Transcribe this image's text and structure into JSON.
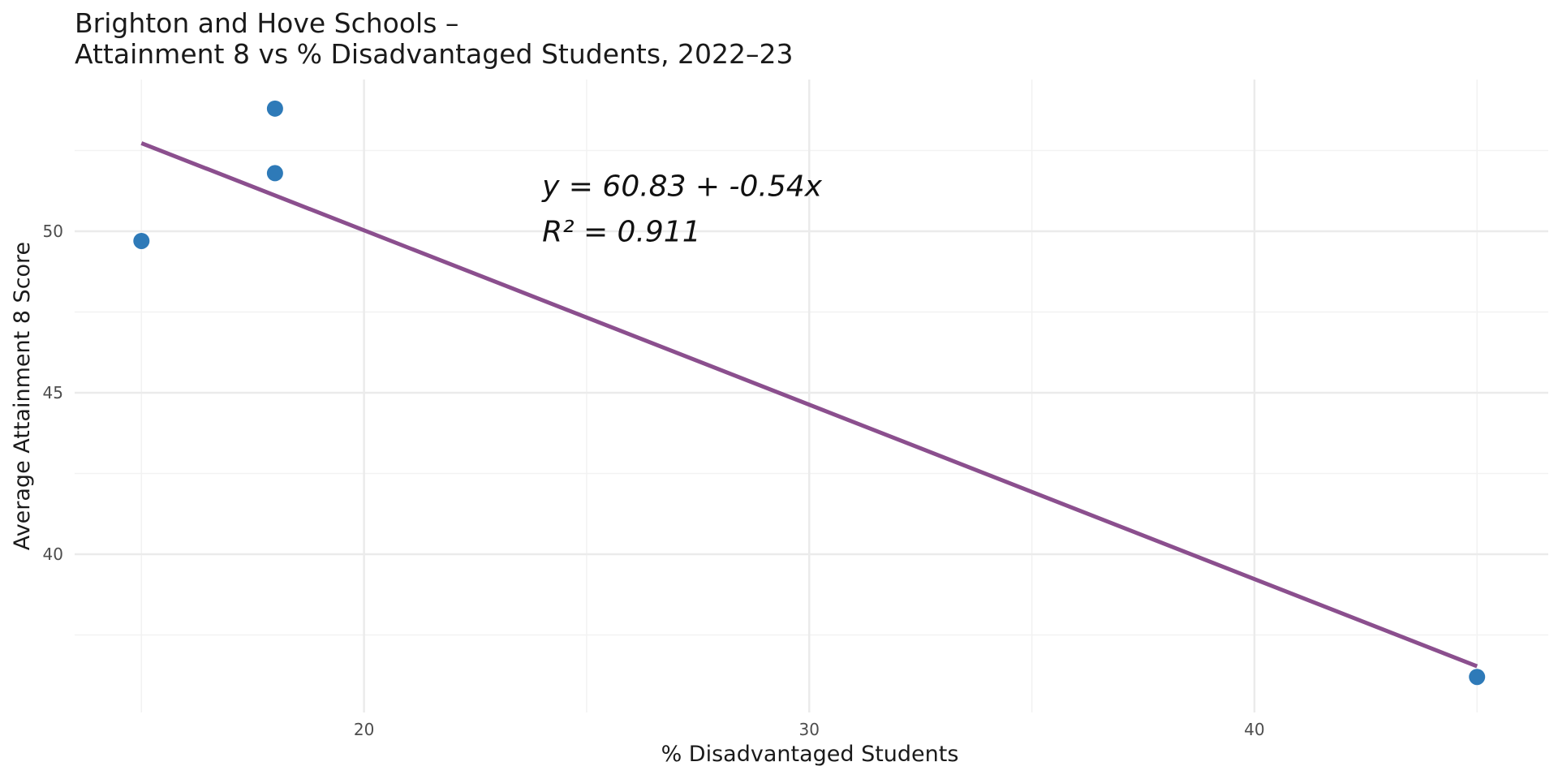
{
  "chart_data": {
    "type": "scatter",
    "title_lines": [
      "Brighton and Hove Schools –",
      "Attainment 8 vs % Disadvantaged Students, 2022–23"
    ],
    "xlabel": "% Disadvantaged Students",
    "ylabel": "Average Attainment 8 Score",
    "xlim": [
      13.5,
      46.6
    ],
    "ylim": [
      35.1,
      54.7
    ],
    "x_ticks": [
      20,
      30,
      40
    ],
    "y_ticks": [
      40,
      45,
      50
    ],
    "x_minor_ticks": [
      15,
      25,
      35,
      45
    ],
    "y_minor_ticks": [
      37.5,
      42.5,
      47.5,
      52.5
    ],
    "grid": true,
    "points": [
      {
        "x": 15.0,
        "y": 49.7
      },
      {
        "x": 18.0,
        "y": 53.8
      },
      {
        "x": 18.0,
        "y": 51.8
      },
      {
        "x": 45.0,
        "y": 36.2
      }
    ],
    "point_color": "#2E7AB8",
    "fit_line": {
      "intercept": 60.83,
      "slope": -0.54,
      "x_range": [
        15.0,
        45.0
      ],
      "color": "#8B4F8E"
    },
    "annotation": {
      "equation": "y = 60.83 + -0.54x",
      "r_squared": "R² = 0.911",
      "x": 24.0,
      "y": 51.4
    }
  }
}
